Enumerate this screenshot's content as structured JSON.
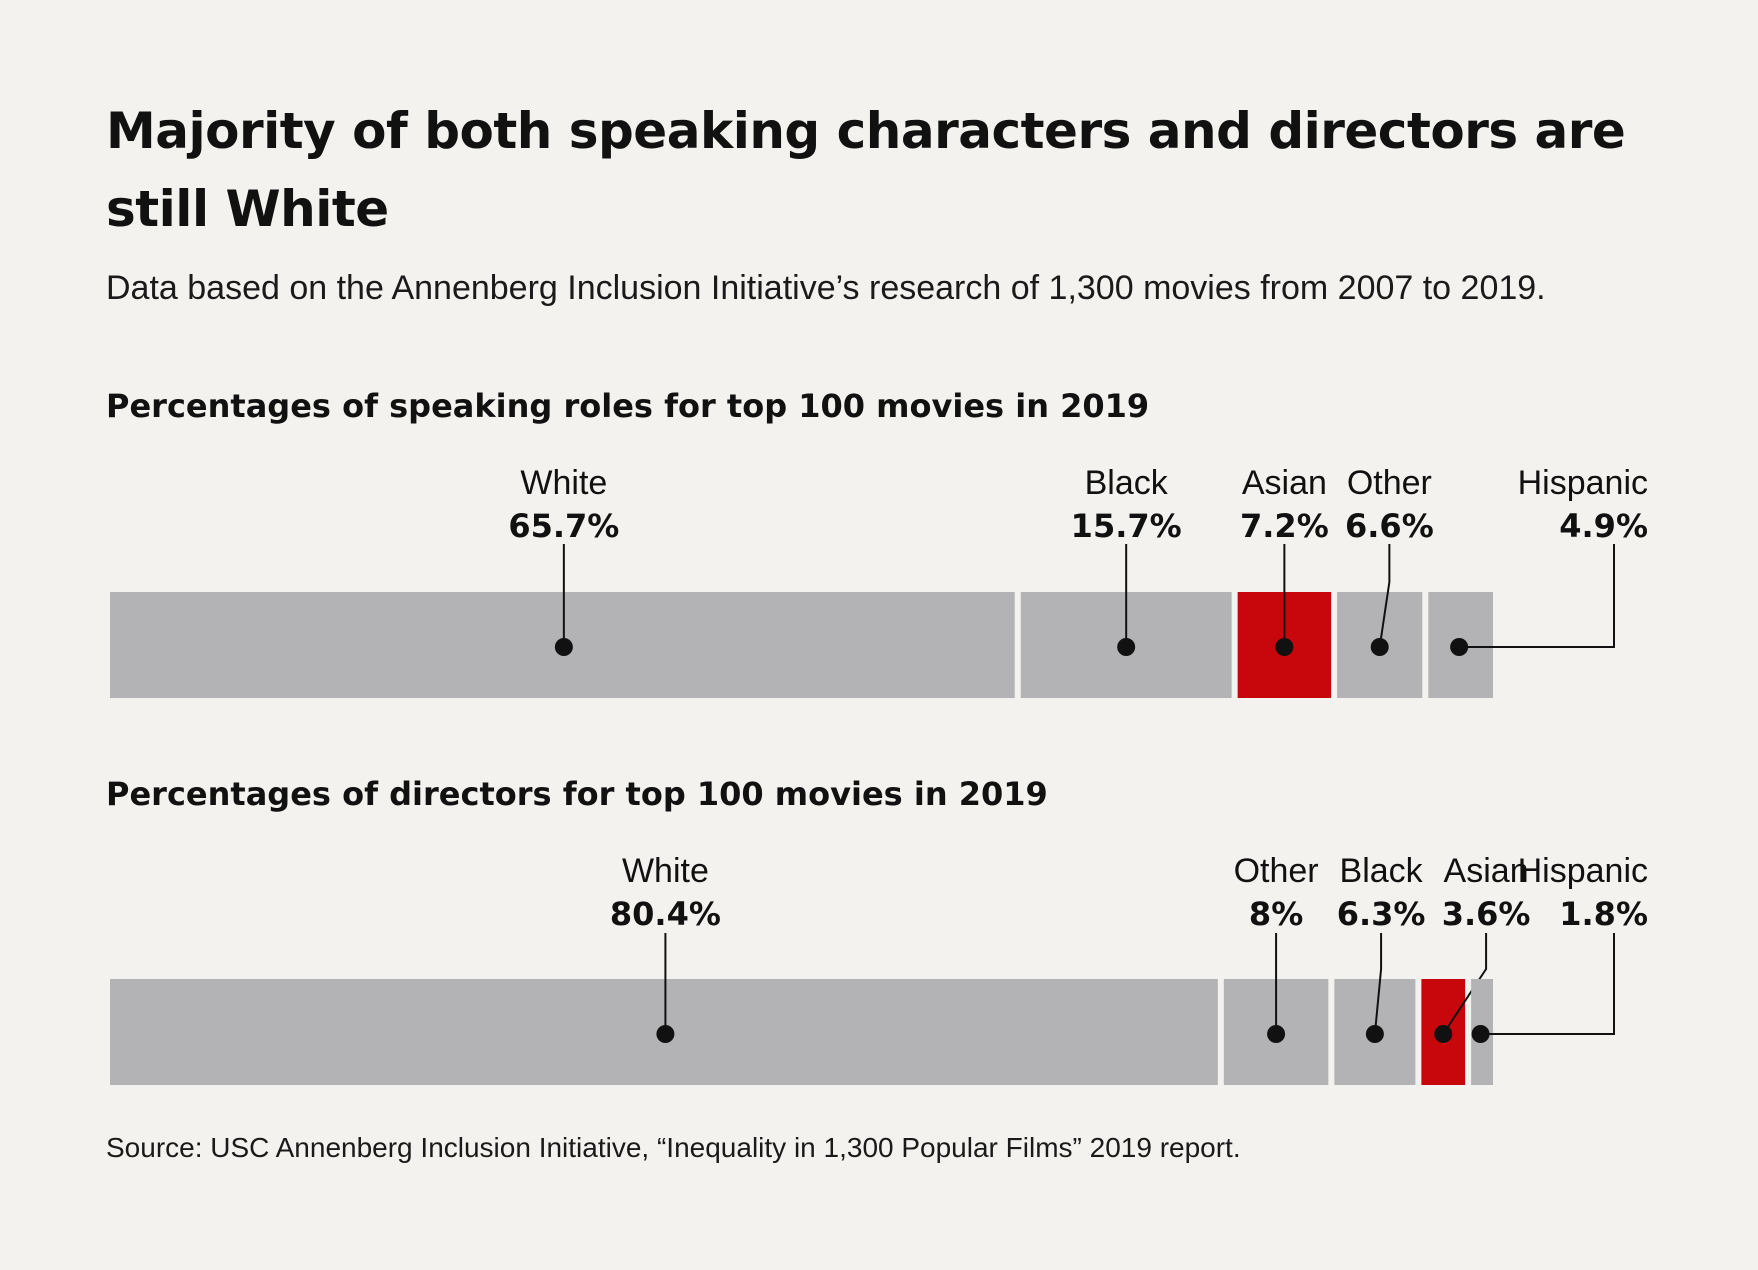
{
  "title": "Majority of both speaking characters and directors are still White",
  "subtitle": "Data based on the Annenberg Inclusion Initiative’s research of 1,300 movies from 2007 to 2019.",
  "source": "Source: USC Annenberg Inclusion Initiative, “Inequality in 1,300 Popular Films” 2019 report.",
  "colors": {
    "segment": "#b3b3b5",
    "highlight": "#c8070c",
    "leader": "#111111",
    "background": "#f4f2ee"
  },
  "chart_data": [
    {
      "type": "bar",
      "stacked": true,
      "orientation": "horizontal",
      "title": "Percentages of speaking roles for top 100 movies in 2019",
      "categories": [
        "White",
        "Black",
        "Asian",
        "Other",
        "Hispanic"
      ],
      "values": [
        65.7,
        15.7,
        7.2,
        6.6,
        4.9
      ],
      "value_labels": [
        "65.7%",
        "15.7%",
        "7.2%",
        "6.6%",
        "4.9%"
      ],
      "highlight": "Asian",
      "xlim": [
        0,
        100
      ]
    },
    {
      "type": "bar",
      "stacked": true,
      "orientation": "horizontal",
      "title": "Percentages of directors for top 100 movies in 2019",
      "categories": [
        "White",
        "Other",
        "Black",
        "Asian",
        "Hispanic"
      ],
      "values": [
        80.4,
        8,
        6.3,
        3.6,
        1.8
      ],
      "value_labels": [
        "80.4%",
        "8%",
        "6.3%",
        "3.6%",
        "1.8%"
      ],
      "highlight": "Asian",
      "xlim": [
        0,
        100
      ]
    }
  ]
}
